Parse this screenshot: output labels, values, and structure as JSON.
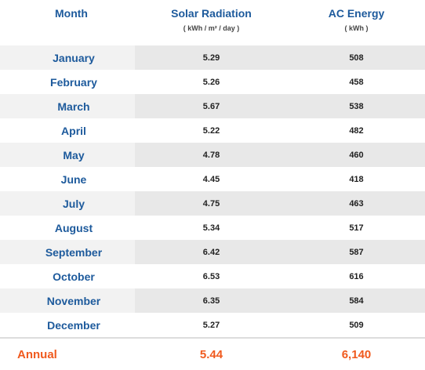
{
  "headers": {
    "month": "Month",
    "solar": "Solar Radiation",
    "solar_unit": "( kWh / m² / day )",
    "ac": "AC Energy",
    "ac_unit": "( kWh )"
  },
  "rows": [
    {
      "month": "January",
      "solar": "5.29",
      "ac": "508"
    },
    {
      "month": "February",
      "solar": "5.26",
      "ac": "458"
    },
    {
      "month": "March",
      "solar": "5.67",
      "ac": "538"
    },
    {
      "month": "April",
      "solar": "5.22",
      "ac": "482"
    },
    {
      "month": "May",
      "solar": "4.78",
      "ac": "460"
    },
    {
      "month": "June",
      "solar": "4.45",
      "ac": "418"
    },
    {
      "month": "July",
      "solar": "4.75",
      "ac": "463"
    },
    {
      "month": "August",
      "solar": "5.34",
      "ac": "517"
    },
    {
      "month": "September",
      "solar": "6.42",
      "ac": "587"
    },
    {
      "month": "October",
      "solar": "6.53",
      "ac": "616"
    },
    {
      "month": "November",
      "solar": "6.35",
      "ac": "584"
    },
    {
      "month": "December",
      "solar": "5.27",
      "ac": "509"
    }
  ],
  "annual": {
    "label": "Annual",
    "solar": "5.44",
    "ac": "6,140"
  },
  "colors": {
    "header": "#1d5a9c",
    "annual": "#f05a1e",
    "row_shade": "#e8e8e8"
  }
}
